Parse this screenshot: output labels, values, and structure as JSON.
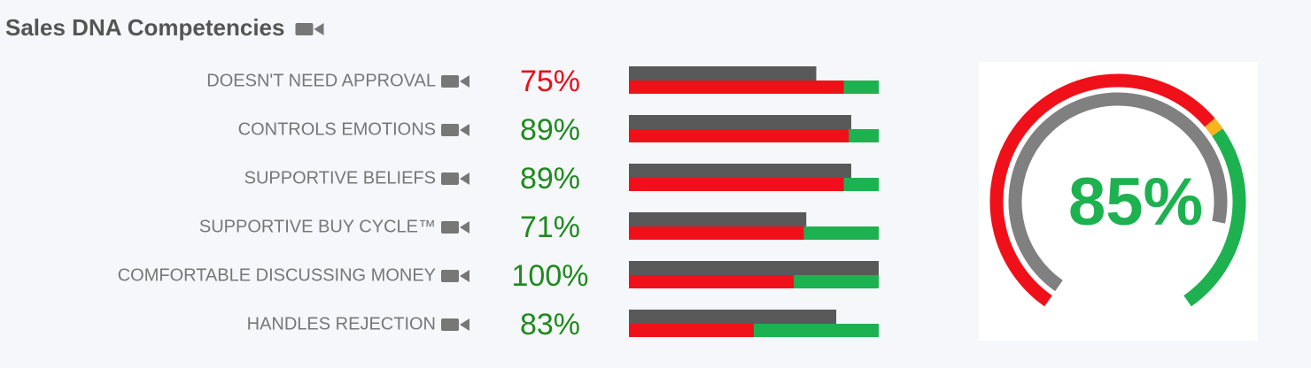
{
  "title": "Sales DNA Competencies",
  "rows": [
    {
      "label": "DOESN'T NEED APPROVAL",
      "value": 75,
      "value_label": "75%",
      "color": "#e8101a",
      "target": 86
    },
    {
      "label": "CONTROLS EMOTIONS",
      "value": 89,
      "value_label": "89%",
      "color": "#1f8a1f",
      "target": 88
    },
    {
      "label": "SUPPORTIVE BELIEFS",
      "value": 89,
      "value_label": "89%",
      "color": "#1f8a1f",
      "target": 86
    },
    {
      "label": "SUPPORTIVE BUY CYCLE™",
      "value": 71,
      "value_label": "71%",
      "color": "#1f8a1f",
      "target": 70
    },
    {
      "label": "COMFORTABLE DISCUSSING MONEY",
      "value": 100,
      "value_label": "100%",
      "color": "#1f8a1f",
      "target": 66
    },
    {
      "label": "HANDLES REJECTION",
      "value": 83,
      "value_label": "83%",
      "color": "#1f8a1f",
      "target": 50
    }
  ],
  "gauge": {
    "value": 85,
    "value_label": "85%",
    "color": "#1db150",
    "red_end": 67,
    "yellow_end": 69
  }
}
